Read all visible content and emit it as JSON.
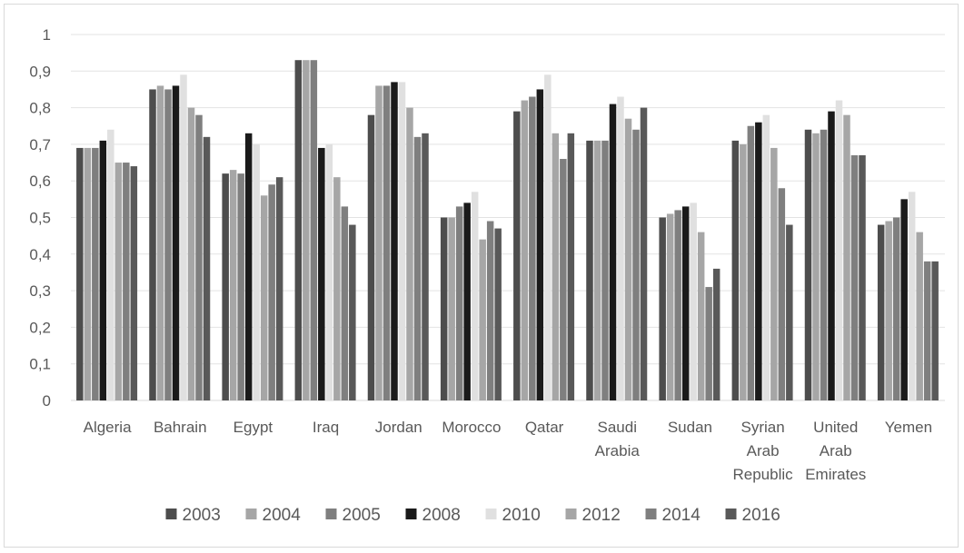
{
  "chart_data": {
    "type": "bar",
    "title": "",
    "xlabel": "",
    "ylabel": "",
    "ylim": [
      0,
      1
    ],
    "yticks": [
      "0",
      "0,1",
      "0,2",
      "0,3",
      "0,4",
      "0,5",
      "0,6",
      "0,7",
      "0,8",
      "0,9",
      "1"
    ],
    "grid": true,
    "legend_position": "bottom",
    "categories": [
      [
        "Algeria"
      ],
      [
        "Bahrain"
      ],
      [
        "Egypt"
      ],
      [
        "Iraq"
      ],
      [
        "Jordan"
      ],
      [
        "Morocco"
      ],
      [
        "Qatar"
      ],
      [
        "Saudi",
        "Arabia"
      ],
      [
        "Sudan"
      ],
      [
        "Syrian",
        "Arab",
        "Republic"
      ],
      [
        "United",
        "Arab",
        "Emirates"
      ],
      [
        "Yemen"
      ]
    ],
    "series": [
      {
        "name": "2003",
        "color": "#4d4d4d",
        "values": [
          0.69,
          0.85,
          0.62,
          0.93,
          0.78,
          0.5,
          0.79,
          0.71,
          0.5,
          0.71,
          0.74,
          0.48
        ]
      },
      {
        "name": "2004",
        "color": "#a6a6a6",
        "values": [
          0.69,
          0.86,
          0.63,
          0.93,
          0.86,
          0.5,
          0.82,
          0.71,
          0.51,
          0.7,
          0.73,
          0.49
        ]
      },
      {
        "name": "2005",
        "color": "#7f7f7f",
        "values": [
          0.69,
          0.85,
          0.62,
          0.93,
          0.86,
          0.53,
          0.83,
          0.71,
          0.52,
          0.75,
          0.74,
          0.5
        ]
      },
      {
        "name": "2008",
        "color": "#1a1a1a",
        "values": [
          0.71,
          0.86,
          0.73,
          0.69,
          0.87,
          0.54,
          0.85,
          0.81,
          0.53,
          0.76,
          0.79,
          0.55
        ]
      },
      {
        "name": "2010",
        "color": "#e0e0e0",
        "values": [
          0.74,
          0.89,
          0.7,
          0.7,
          0.87,
          0.57,
          0.89,
          0.83,
          0.54,
          0.78,
          0.82,
          0.57
        ]
      },
      {
        "name": "2012",
        "color": "#a6a6a6",
        "values": [
          0.65,
          0.8,
          0.56,
          0.61,
          0.8,
          0.44,
          0.73,
          0.77,
          0.46,
          0.69,
          0.78,
          0.46
        ]
      },
      {
        "name": "2014",
        "color": "#7f7f7f",
        "values": [
          0.65,
          0.78,
          0.59,
          0.53,
          0.72,
          0.49,
          0.66,
          0.74,
          0.31,
          0.58,
          0.67,
          0.38
        ]
      },
      {
        "name": "2016",
        "color": "#595959",
        "values": [
          0.64,
          0.72,
          0.61,
          0.48,
          0.73,
          0.47,
          0.73,
          0.8,
          0.36,
          0.48,
          0.67,
          0.38
        ]
      }
    ]
  }
}
